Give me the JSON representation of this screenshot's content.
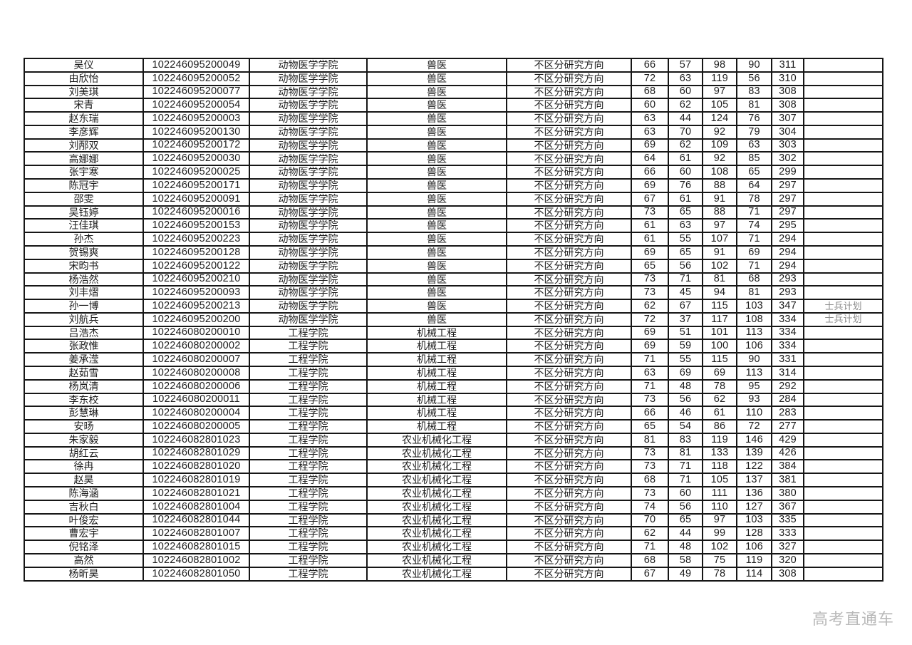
{
  "watermark": "高考直通车",
  "colors": {
    "border": "#161616",
    "text": "#1c1c1c",
    "remark_text": "#8d8d8d",
    "watermark_text": "#b9b9b9",
    "background": "#ffffff"
  },
  "table": {
    "cell_order": [
      "name",
      "id",
      "college",
      "major",
      "direction",
      "s1",
      "s2",
      "s3",
      "s4",
      "total",
      "remark"
    ],
    "rows": [
      {
        "name": "吴仪",
        "id": "102246095200049",
        "college": "动物医学学院",
        "major": "兽医",
        "direction": "不区分研究方向",
        "s1": "66",
        "s2": "57",
        "s3": "98",
        "s4": "90",
        "total": "311",
        "remark": ""
      },
      {
        "name": "由欣怡",
        "id": "102246095200052",
        "college": "动物医学学院",
        "major": "兽医",
        "direction": "不区分研究方向",
        "s1": "72",
        "s2": "63",
        "s3": "119",
        "s4": "56",
        "total": "310",
        "remark": ""
      },
      {
        "name": "刘美琪",
        "id": "102246095200077",
        "college": "动物医学学院",
        "major": "兽医",
        "direction": "不区分研究方向",
        "s1": "68",
        "s2": "60",
        "s3": "97",
        "s4": "83",
        "total": "308",
        "remark": ""
      },
      {
        "name": "宋青",
        "id": "102246095200054",
        "college": "动物医学学院",
        "major": "兽医",
        "direction": "不区分研究方向",
        "s1": "60",
        "s2": "62",
        "s3": "105",
        "s4": "81",
        "total": "308",
        "remark": ""
      },
      {
        "name": "赵东瑞",
        "id": "102246095200003",
        "college": "动物医学学院",
        "major": "兽医",
        "direction": "不区分研究方向",
        "s1": "63",
        "s2": "44",
        "s3": "124",
        "s4": "76",
        "total": "307",
        "remark": ""
      },
      {
        "name": "李彦辉",
        "id": "102246095200130",
        "college": "动物医学学院",
        "major": "兽医",
        "direction": "不区分研究方向",
        "s1": "63",
        "s2": "70",
        "s3": "92",
        "s4": "79",
        "total": "304",
        "remark": ""
      },
      {
        "name": "刘邴双",
        "id": "102246095200172",
        "college": "动物医学学院",
        "major": "兽医",
        "direction": "不区分研究方向",
        "s1": "69",
        "s2": "62",
        "s3": "109",
        "s4": "63",
        "total": "303",
        "remark": ""
      },
      {
        "name": "高娜娜",
        "id": "102246095200030",
        "college": "动物医学学院",
        "major": "兽医",
        "direction": "不区分研究方向",
        "s1": "64",
        "s2": "61",
        "s3": "92",
        "s4": "85",
        "total": "302",
        "remark": ""
      },
      {
        "name": "张宇寒",
        "id": "102246095200025",
        "college": "动物医学学院",
        "major": "兽医",
        "direction": "不区分研究方向",
        "s1": "66",
        "s2": "60",
        "s3": "108",
        "s4": "65",
        "total": "299",
        "remark": ""
      },
      {
        "name": "陈冠宇",
        "id": "102246095200171",
        "college": "动物医学学院",
        "major": "兽医",
        "direction": "不区分研究方向",
        "s1": "69",
        "s2": "76",
        "s3": "88",
        "s4": "64",
        "total": "297",
        "remark": ""
      },
      {
        "name": "邵雯",
        "id": "102246095200091",
        "college": "动物医学学院",
        "major": "兽医",
        "direction": "不区分研究方向",
        "s1": "67",
        "s2": "61",
        "s3": "91",
        "s4": "78",
        "total": "297",
        "remark": ""
      },
      {
        "name": "吴钰婷",
        "id": "102246095200016",
        "college": "动物医学学院",
        "major": "兽医",
        "direction": "不区分研究方向",
        "s1": "73",
        "s2": "65",
        "s3": "88",
        "s4": "71",
        "total": "297",
        "remark": ""
      },
      {
        "name": "汪佳琪",
        "id": "102246095200153",
        "college": "动物医学学院",
        "major": "兽医",
        "direction": "不区分研究方向",
        "s1": "61",
        "s2": "63",
        "s3": "97",
        "s4": "74",
        "total": "295",
        "remark": ""
      },
      {
        "name": "孙杰",
        "id": "102246095200223",
        "college": "动物医学学院",
        "major": "兽医",
        "direction": "不区分研究方向",
        "s1": "61",
        "s2": "55",
        "s3": "107",
        "s4": "71",
        "total": "294",
        "remark": ""
      },
      {
        "name": "贺锡爽",
        "id": "102246095200128",
        "college": "动物医学学院",
        "major": "兽医",
        "direction": "不区分研究方向",
        "s1": "69",
        "s2": "65",
        "s3": "91",
        "s4": "69",
        "total": "294",
        "remark": ""
      },
      {
        "name": "宋昀书",
        "id": "102246095200122",
        "college": "动物医学学院",
        "major": "兽医",
        "direction": "不区分研究方向",
        "s1": "65",
        "s2": "56",
        "s3": "102",
        "s4": "71",
        "total": "294",
        "remark": ""
      },
      {
        "name": "杨浩然",
        "id": "102246095200210",
        "college": "动物医学学院",
        "major": "兽医",
        "direction": "不区分研究方向",
        "s1": "73",
        "s2": "71",
        "s3": "81",
        "s4": "68",
        "total": "293",
        "remark": ""
      },
      {
        "name": "刘丰熠",
        "id": "102246095200093",
        "college": "动物医学学院",
        "major": "兽医",
        "direction": "不区分研究方向",
        "s1": "73",
        "s2": "45",
        "s3": "94",
        "s4": "81",
        "total": "293",
        "remark": ""
      },
      {
        "name": "孙一博",
        "id": "102246095200213",
        "college": "动物医学学院",
        "major": "兽医",
        "direction": "不区分研究方向",
        "s1": "62",
        "s2": "67",
        "s3": "115",
        "s4": "103",
        "total": "347",
        "remark": "士兵计划"
      },
      {
        "name": "刘航兵",
        "id": "102246095200200",
        "college": "动物医学学院",
        "major": "兽医",
        "direction": "不区分研究方向",
        "s1": "72",
        "s2": "37",
        "s3": "117",
        "s4": "108",
        "total": "334",
        "remark": "士兵计划"
      },
      {
        "name": "吕浩杰",
        "id": "102246080200010",
        "college": "工程学院",
        "major": "机械工程",
        "direction": "不区分研究方向",
        "s1": "69",
        "s2": "51",
        "s3": "101",
        "s4": "113",
        "total": "334",
        "remark": ""
      },
      {
        "name": "张政惟",
        "id": "102246080200002",
        "college": "工程学院",
        "major": "机械工程",
        "direction": "不区分研究方向",
        "s1": "69",
        "s2": "59",
        "s3": "100",
        "s4": "106",
        "total": "334",
        "remark": ""
      },
      {
        "name": "姜承滢",
        "id": "102246080200007",
        "college": "工程学院",
        "major": "机械工程",
        "direction": "不区分研究方向",
        "s1": "71",
        "s2": "55",
        "s3": "115",
        "s4": "90",
        "total": "331",
        "remark": ""
      },
      {
        "name": "赵茹雪",
        "id": "102246080200008",
        "college": "工程学院",
        "major": "机械工程",
        "direction": "不区分研究方向",
        "s1": "63",
        "s2": "69",
        "s3": "69",
        "s4": "113",
        "total": "314",
        "remark": ""
      },
      {
        "name": "杨岚清",
        "id": "102246080200006",
        "college": "工程学院",
        "major": "机械工程",
        "direction": "不区分研究方向",
        "s1": "71",
        "s2": "48",
        "s3": "78",
        "s4": "95",
        "total": "292",
        "remark": ""
      },
      {
        "name": "李东校",
        "id": "102246080200011",
        "college": "工程学院",
        "major": "机械工程",
        "direction": "不区分研究方向",
        "s1": "73",
        "s2": "56",
        "s3": "62",
        "s4": "93",
        "total": "284",
        "remark": ""
      },
      {
        "name": "彭慧琳",
        "id": "102246080200004",
        "college": "工程学院",
        "major": "机械工程",
        "direction": "不区分研究方向",
        "s1": "66",
        "s2": "46",
        "s3": "61",
        "s4": "110",
        "total": "283",
        "remark": ""
      },
      {
        "name": "安旸",
        "id": "102246080200005",
        "college": "工程学院",
        "major": "机械工程",
        "direction": "不区分研究方向",
        "s1": "65",
        "s2": "54",
        "s3": "86",
        "s4": "72",
        "total": "277",
        "remark": ""
      },
      {
        "name": "朱家毅",
        "id": "102246082801023",
        "college": "工程学院",
        "major": "农业机械化工程",
        "direction": "不区分研究方向",
        "s1": "81",
        "s2": "83",
        "s3": "119",
        "s4": "146",
        "total": "429",
        "remark": ""
      },
      {
        "name": "胡红云",
        "id": "102246082801029",
        "college": "工程学院",
        "major": "农业机械化工程",
        "direction": "不区分研究方向",
        "s1": "73",
        "s2": "81",
        "s3": "133",
        "s4": "139",
        "total": "426",
        "remark": ""
      },
      {
        "name": "徐冉",
        "id": "102246082801020",
        "college": "工程学院",
        "major": "农业机械化工程",
        "direction": "不区分研究方向",
        "s1": "73",
        "s2": "71",
        "s3": "118",
        "s4": "122",
        "total": "384",
        "remark": ""
      },
      {
        "name": "赵昊",
        "id": "102246082801019",
        "college": "工程学院",
        "major": "农业机械化工程",
        "direction": "不区分研究方向",
        "s1": "68",
        "s2": "71",
        "s3": "105",
        "s4": "137",
        "total": "381",
        "remark": ""
      },
      {
        "name": "陈海涵",
        "id": "102246082801021",
        "college": "工程学院",
        "major": "农业机械化工程",
        "direction": "不区分研究方向",
        "s1": "73",
        "s2": "60",
        "s3": "111",
        "s4": "136",
        "total": "380",
        "remark": ""
      },
      {
        "name": "吉秋白",
        "id": "102246082801004",
        "college": "工程学院",
        "major": "农业机械化工程",
        "direction": "不区分研究方向",
        "s1": "74",
        "s2": "56",
        "s3": "110",
        "s4": "127",
        "total": "367",
        "remark": ""
      },
      {
        "name": "叶俊宏",
        "id": "102246082801044",
        "college": "工程学院",
        "major": "农业机械化工程",
        "direction": "不区分研究方向",
        "s1": "70",
        "s2": "65",
        "s3": "97",
        "s4": "103",
        "total": "335",
        "remark": ""
      },
      {
        "name": "曹宏宇",
        "id": "102246082801007",
        "college": "工程学院",
        "major": "农业机械化工程",
        "direction": "不区分研究方向",
        "s1": "62",
        "s2": "44",
        "s3": "99",
        "s4": "128",
        "total": "333",
        "remark": ""
      },
      {
        "name": "倪铭泽",
        "id": "102246082801015",
        "college": "工程学院",
        "major": "农业机械化工程",
        "direction": "不区分研究方向",
        "s1": "71",
        "s2": "48",
        "s3": "102",
        "s4": "106",
        "total": "327",
        "remark": ""
      },
      {
        "name": "高然",
        "id": "102246082801002",
        "college": "工程学院",
        "major": "农业机械化工程",
        "direction": "不区分研究方向",
        "s1": "68",
        "s2": "58",
        "s3": "75",
        "s4": "119",
        "total": "320",
        "remark": ""
      },
      {
        "name": "杨昕昊",
        "id": "102246082801050",
        "college": "工程学院",
        "major": "农业机械化工程",
        "direction": "不区分研究方向",
        "s1": "67",
        "s2": "49",
        "s3": "78",
        "s4": "114",
        "total": "308",
        "remark": ""
      }
    ]
  }
}
